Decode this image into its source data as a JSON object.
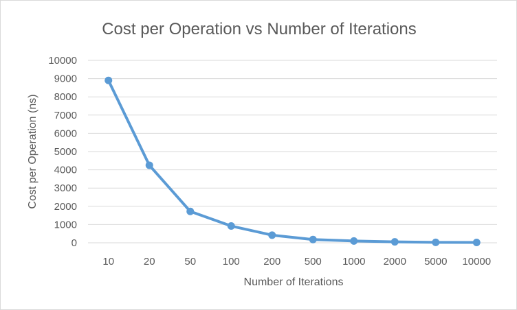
{
  "chart_data": {
    "type": "line",
    "title": "Cost per Operation vs Number of Iterations",
    "xlabel": "Number of Iterations",
    "ylabel": "Cost per Operation (ns)",
    "categories": [
      "10",
      "20",
      "50",
      "100",
      "200",
      "500",
      "1000",
      "2000",
      "5000",
      "10000"
    ],
    "series": [
      {
        "values": [
          8900,
          4250,
          1720,
          920,
          420,
          180,
          100,
          50,
          25,
          20
        ],
        "color": "#5b9bd5"
      }
    ],
    "ylim": [
      0,
      10000
    ],
    "yticks": [
      "0",
      "1000",
      "2000",
      "3000",
      "4000",
      "5000",
      "6000",
      "7000",
      "8000",
      "9000",
      "10000"
    ],
    "grid": true,
    "legend": "none"
  }
}
